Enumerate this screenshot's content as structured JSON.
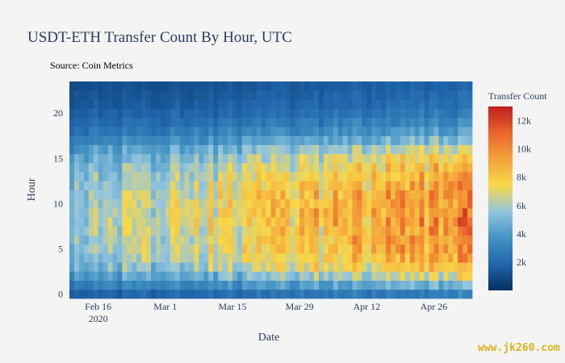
{
  "chart_data": {
    "type": "heatmap",
    "title": "USDT-ETH Transfer Count By Hour, UTC",
    "subtitle": "Source: Coin Metrics",
    "xlabel": "Date",
    "ylabel": "Hour",
    "x_start": "2020-02-10",
    "x_end": "2020-05-04",
    "x_ticks": [
      {
        "date": "2020-02-16",
        "label": "Feb 16",
        "sublabel": "2020"
      },
      {
        "date": "2020-03-01",
        "label": "Mar 1",
        "sublabel": ""
      },
      {
        "date": "2020-03-15",
        "label": "Mar 15",
        "sublabel": ""
      },
      {
        "date": "2020-03-29",
        "label": "Mar 29",
        "sublabel": ""
      },
      {
        "date": "2020-04-12",
        "label": "Apr 12",
        "sublabel": ""
      },
      {
        "date": "2020-04-26",
        "label": "Apr 26",
        "sublabel": ""
      }
    ],
    "y_ticks": [
      0,
      5,
      10,
      15,
      20
    ],
    "y_range": [
      -0.5,
      23.5
    ],
    "colorbar": {
      "title": "Transfer Count",
      "range": [
        0,
        13000
      ],
      "ticks": [
        {
          "value": 2000,
          "label": "2k"
        },
        {
          "value": 4000,
          "label": "4k"
        },
        {
          "value": 6000,
          "label": "6k"
        },
        {
          "value": 8000,
          "label": "8k"
        },
        {
          "value": 10000,
          "label": "10k"
        },
        {
          "value": 12000,
          "label": "12k"
        }
      ],
      "colorscale": [
        "#053061",
        "#2166ac",
        "#4393c3",
        "#92c5de",
        "#f7d84a",
        "#f4a33a",
        "#e8642c",
        "#c0201e"
      ]
    },
    "hourly_profile": [
      {
        "hour": 0,
        "value": 2200
      },
      {
        "hour": 1,
        "value": 3600
      },
      {
        "hour": 2,
        "value": 5000
      },
      {
        "hour": 3,
        "value": 6200
      },
      {
        "hour": 4,
        "value": 6800
      },
      {
        "hour": 5,
        "value": 7100
      },
      {
        "hour": 6,
        "value": 7200
      },
      {
        "hour": 7,
        "value": 7300
      },
      {
        "hour": 8,
        "value": 7400
      },
      {
        "hour": 9,
        "value": 7400
      },
      {
        "hour": 10,
        "value": 7300
      },
      {
        "hour": 11,
        "value": 7200
      },
      {
        "hour": 12,
        "value": 7000
      },
      {
        "hour": 13,
        "value": 6700
      },
      {
        "hour": 14,
        "value": 6300
      },
      {
        "hour": 15,
        "value": 5700
      },
      {
        "hour": 16,
        "value": 4900
      },
      {
        "hour": 17,
        "value": 3900
      },
      {
        "hour": 18,
        "value": 3000
      },
      {
        "hour": 19,
        "value": 2400
      },
      {
        "hour": 20,
        "value": 2000
      },
      {
        "hour": 21,
        "value": 1700
      },
      {
        "hour": 22,
        "value": 1500
      },
      {
        "hour": 23,
        "value": 1300
      }
    ],
    "daily_scale_start": 0.75,
    "daily_scale_end": 1.35
  },
  "watermark": "www.jk260.com"
}
